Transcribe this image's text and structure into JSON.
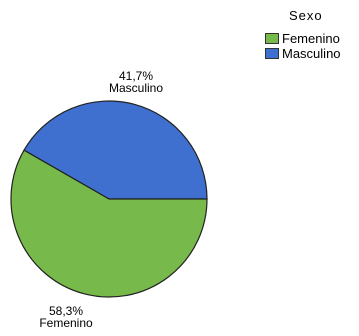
{
  "chart_data": {
    "type": "pie",
    "title": "",
    "legend_title": "Sexo",
    "legend_position": "top-right",
    "slices": [
      {
        "name": "Femenino",
        "value": 58.3,
        "value_label": "58,3%",
        "color": "#77b94a"
      },
      {
        "name": "Masculino",
        "value": 41.7,
        "value_label": "41,7%",
        "color": "#3f6fcf"
      }
    ]
  }
}
